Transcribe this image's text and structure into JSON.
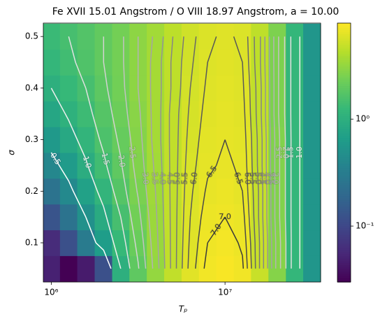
{
  "chart_data": {
    "type": "heatmap",
    "title": "Fe XVII 15.01 Angstrom / O VIII 18.97 Angstrom, a = 10.00",
    "x_label": "Tₚ",
    "y_label": "σ",
    "x": [
      1000000,
      1260000,
      1580000,
      2000000,
      2510000,
      3160000,
      3980000,
      5010000,
      6310000,
      7940000,
      10000000,
      12600000,
      15800000,
      20000000,
      25100000,
      31600000
    ],
    "y": [
      0.05,
      0.1,
      0.15,
      0.2,
      0.25,
      0.3,
      0.35,
      0.4,
      0.45,
      0.5
    ],
    "z": [
      [
        0.05,
        0.03,
        0.045,
        0.12,
        1.0,
        1.95,
        3.2,
        4.7,
        6.2,
        7.2,
        7.6,
        7.1,
        5.0,
        2.8,
        1.2,
        0.55
      ],
      [
        0.06,
        0.12,
        0.3,
        0.65,
        1.25,
        2.15,
        3.3,
        4.7,
        6.1,
        7.0,
        7.3,
        6.9,
        5.0,
        2.8,
        1.2,
        0.55
      ],
      [
        0.13,
        0.25,
        0.5,
        0.9,
        1.5,
        2.35,
        3.4,
        4.7,
        6.0,
        6.8,
        7.0,
        6.7,
        4.9,
        2.7,
        1.2,
        0.55
      ],
      [
        0.25,
        0.42,
        0.72,
        1.15,
        1.75,
        2.55,
        3.5,
        4.7,
        5.9,
        6.6,
        6.8,
        6.5,
        4.9,
        2.7,
        1.2,
        0.55
      ],
      [
        0.4,
        0.62,
        0.95,
        1.4,
        1.95,
        2.7,
        3.6,
        4.7,
        5.8,
        6.4,
        6.6,
        6.4,
        4.8,
        2.7,
        1.2,
        0.55
      ],
      [
        0.6,
        0.85,
        1.15,
        1.6,
        2.1,
        2.8,
        3.7,
        4.7,
        5.7,
        6.3,
        6.5,
        6.3,
        4.8,
        2.7,
        1.2,
        0.55
      ],
      [
        0.8,
        1.05,
        1.35,
        1.75,
        2.25,
        2.9,
        3.7,
        4.7,
        5.6,
        6.2,
        6.4,
        6.2,
        4.7,
        2.6,
        1.2,
        0.55
      ],
      [
        1.0,
        1.25,
        1.5,
        1.9,
        2.35,
        3.0,
        3.7,
        4.6,
        5.5,
        6.1,
        6.3,
        6.1,
        4.7,
        2.6,
        1.2,
        0.55
      ],
      [
        1.2,
        1.4,
        1.65,
        2.0,
        2.4,
        3.0,
        3.7,
        4.6,
        5.4,
        6.0,
        6.2,
        6.0,
        4.6,
        2.6,
        1.2,
        0.55
      ],
      [
        1.3,
        1.5,
        1.7,
        2.0,
        2.4,
        3.0,
        3.6,
        4.5,
        5.3,
        5.9,
        6.1,
        5.9,
        4.6,
        2.6,
        1.2,
        0.55
      ]
    ],
    "xlim": [
      900000,
      35500000
    ],
    "xscale": "log",
    "xticks": [
      {
        "value": 1000000,
        "label": "10⁶"
      },
      {
        "value": 10000000,
        "label": "10⁷"
      }
    ],
    "ylim": [
      0.024,
      0.526
    ],
    "yticks": [
      0.1,
      0.2,
      0.3,
      0.4,
      0.5
    ],
    "colormap": "viridis",
    "colorbar": {
      "lim": [
        0.03,
        7.9
      ],
      "scale": "log",
      "ticks": [
        {
          "value": 0.1,
          "label": "10⁻¹"
        },
        {
          "value": 1,
          "label": "10⁰"
        }
      ]
    },
    "contours": {
      "colors": [
        "#ffffff",
        "#3a3a3a"
      ],
      "levels": [
        {
          "value": 0.5,
          "label": "0.5"
        },
        {
          "value": 1,
          "label": "1.0"
        },
        {
          "value": 1.5,
          "label": "1.5"
        },
        {
          "value": 2,
          "label": "2.0"
        },
        {
          "value": 2.5,
          "label": "2.5"
        },
        {
          "value": 3,
          "label": "3.0"
        },
        {
          "value": 3.5,
          "label": "3.5"
        },
        {
          "value": 4,
          "label": "4.0"
        },
        {
          "value": 4.5,
          "label": "4.5"
        },
        {
          "value": 5,
          "label": "5.0"
        },
        {
          "value": 5.5,
          "label": "5.5"
        },
        {
          "value": 6,
          "label": "6.0"
        },
        {
          "value": 6.5,
          "label": "6.5"
        },
        {
          "value": 7,
          "label": "7.0"
        }
      ]
    }
  }
}
